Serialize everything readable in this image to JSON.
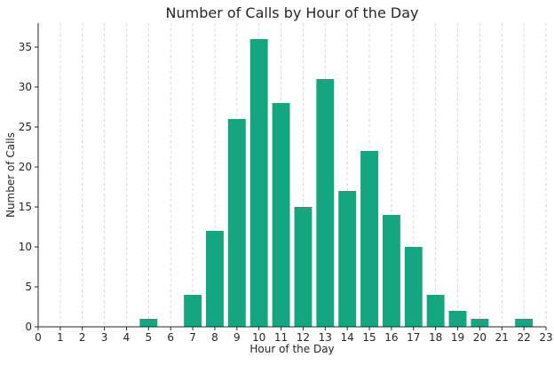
{
  "chart_data": {
    "type": "bar",
    "title": "Number of Calls by Hour of the Day",
    "xlabel": "Hour of the Day",
    "ylabel": "Number of Calls",
    "x": [
      0,
      1,
      2,
      3,
      4,
      5,
      6,
      7,
      8,
      9,
      10,
      11,
      12,
      13,
      14,
      15,
      16,
      17,
      18,
      19,
      20,
      21,
      22,
      23
    ],
    "values": [
      0,
      0,
      0,
      0,
      0,
      1,
      0,
      4,
      12,
      26,
      36,
      28,
      15,
      31,
      17,
      22,
      14,
      10,
      4,
      2,
      1,
      0,
      1,
      0
    ],
    "xlim": [
      0,
      23
    ],
    "ylim": [
      0,
      38
    ],
    "yticks": [
      0,
      5,
      10,
      15,
      20,
      25,
      30,
      35
    ],
    "xticks": [
      0,
      1,
      2,
      3,
      4,
      5,
      6,
      7,
      8,
      9,
      10,
      11,
      12,
      13,
      14,
      15,
      16,
      17,
      18,
      19,
      20,
      21,
      22,
      23
    ],
    "grid": "vertical-dashed",
    "bar_color": "#13a680",
    "grid_color": "#cccccc",
    "axis_color": "#262626",
    "legend": "none"
  }
}
